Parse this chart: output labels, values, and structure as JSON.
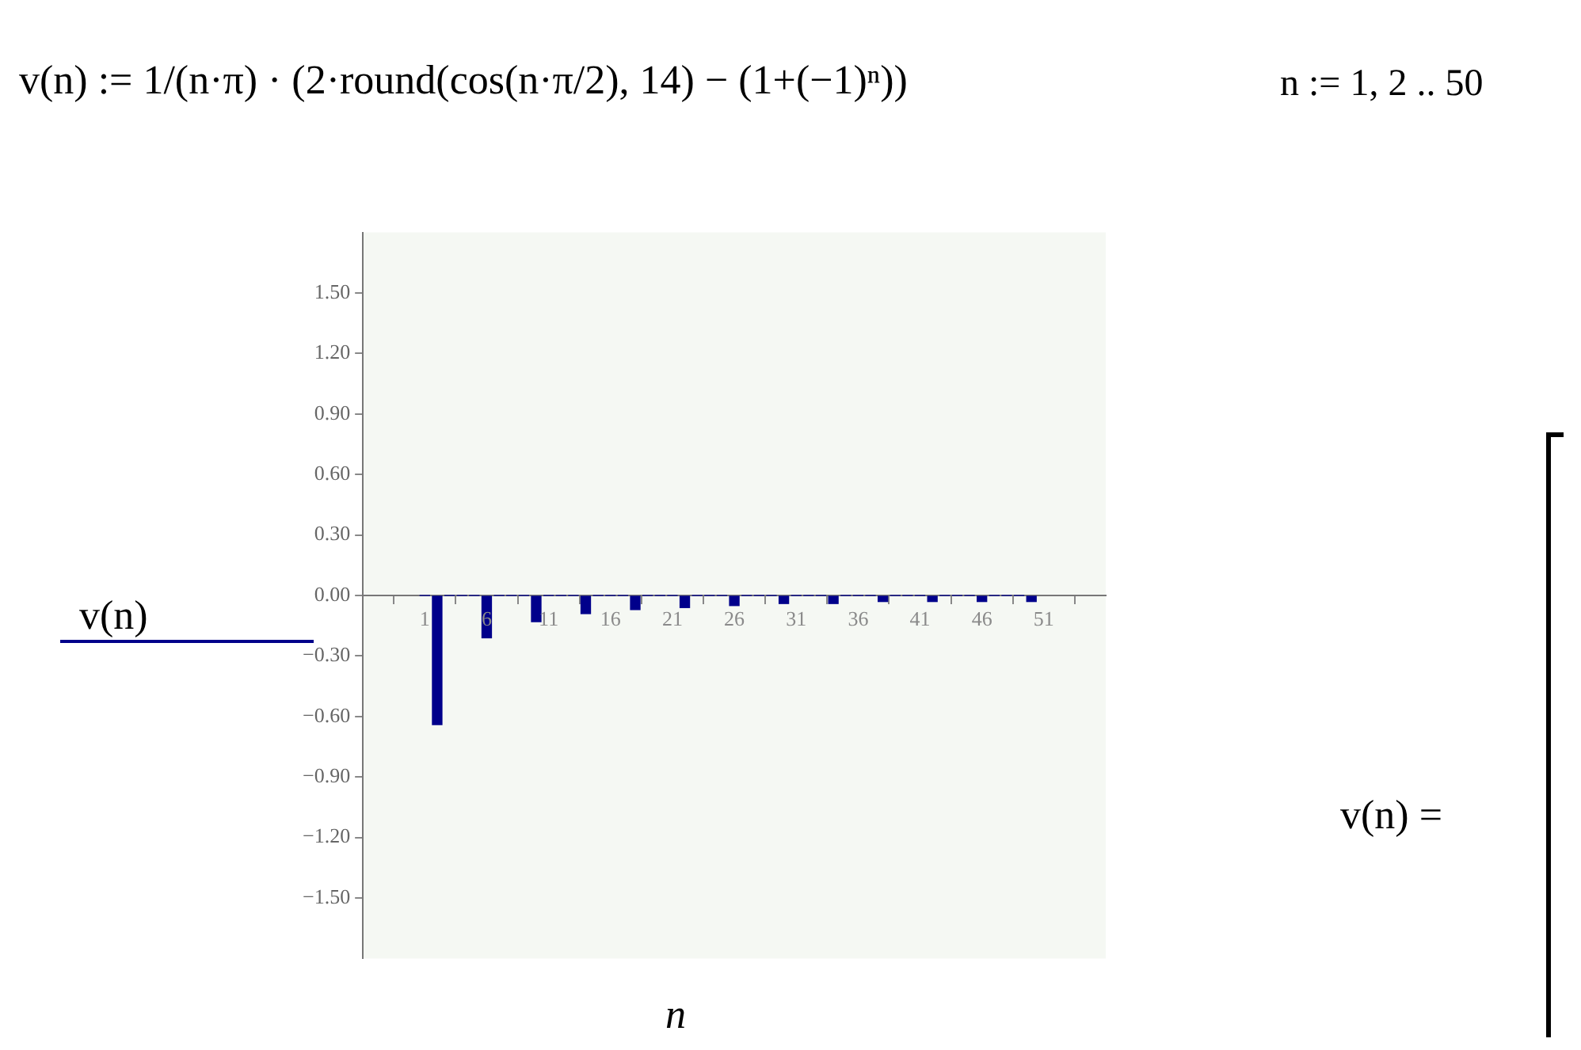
{
  "chart_data": {
    "type": "bar",
    "title": "v(n) := 1/(n·π) · (2·round(cos(n·π/2), 14) − (1+(−1)ⁿ))",
    "annotations": [
      "n := 1, 2 .. 50",
      "v(n) ="
    ],
    "xlabel": "n",
    "legend": "left",
    "series": [
      {
        "name": "v(n)",
        "color": "#00008b",
        "values": [
          0,
          -0.64,
          0,
          0,
          0,
          -0.21,
          0,
          0,
          0,
          -0.13,
          0,
          0,
          0,
          -0.09,
          0,
          0,
          0,
          -0.07,
          0,
          0,
          0,
          -0.06,
          0,
          0,
          0,
          -0.05,
          0,
          0,
          0,
          -0.04,
          0,
          0,
          0,
          -0.04,
          0,
          0,
          0,
          -0.03,
          0,
          0,
          0,
          -0.03,
          0,
          0,
          0,
          -0.03,
          0,
          0,
          0,
          -0.03
        ]
      }
    ],
    "x": [
      1,
      2,
      3,
      4,
      5,
      6,
      7,
      8,
      9,
      10,
      11,
      12,
      13,
      14,
      15,
      16,
      17,
      18,
      19,
      20,
      21,
      22,
      23,
      24,
      25,
      26,
      27,
      28,
      29,
      30,
      31,
      32,
      33,
      34,
      35,
      36,
      37,
      38,
      39,
      40,
      41,
      42,
      43,
      44,
      45,
      46,
      47,
      48,
      49,
      50
    ],
    "xlim": [
      -4,
      56
    ],
    "ylim": [
      -1.8,
      1.8
    ],
    "xticks": [
      1,
      6,
      11,
      16,
      21,
      26,
      31,
      36,
      41,
      46,
      51
    ],
    "yticks": [
      {
        "value": -1.5,
        "label": "−1.50"
      },
      {
        "value": -1.2,
        "label": "−1.20"
      },
      {
        "value": -0.9,
        "label": "−0.90"
      },
      {
        "value": -0.6,
        "label": "−0.60"
      },
      {
        "value": -0.3,
        "label": "−0.30"
      },
      {
        "value": 0,
        "label": "0.00"
      },
      {
        "value": 0.3,
        "label": "0.30"
      },
      {
        "value": 0.6,
        "label": "0.60"
      },
      {
        "value": 0.9,
        "label": "0.90"
      },
      {
        "value": 1.2,
        "label": "1.20"
      },
      {
        "value": 1.5,
        "label": "1.50"
      }
    ],
    "grid": false
  }
}
